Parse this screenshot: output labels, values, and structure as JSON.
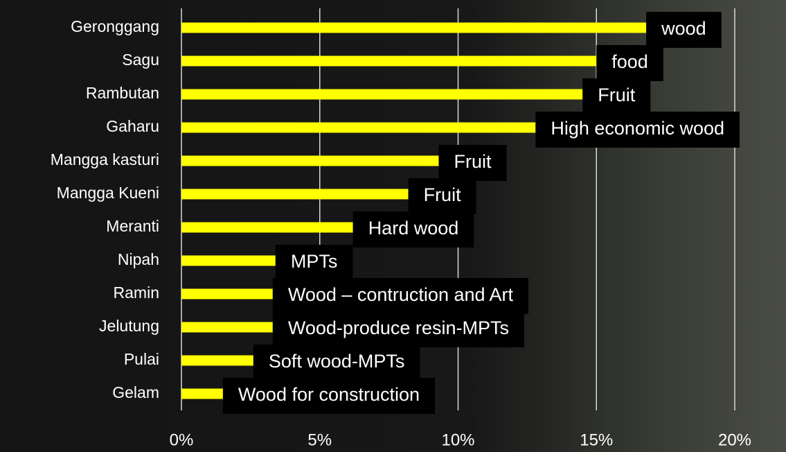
{
  "chart_data": {
    "type": "bar",
    "orientation": "horizontal",
    "categories": [
      "Geronggang",
      "Sagu",
      "Rambutan",
      "Gaharu",
      "Mangga kasturi",
      "Mangga Kueni",
      "Meranti",
      "Nipah",
      "Ramin",
      "Jelutung",
      "Pulai",
      "Gelam"
    ],
    "values": [
      16.8,
      15.0,
      14.5,
      12.8,
      9.3,
      8.2,
      6.2,
      3.4,
      3.3,
      3.3,
      2.6,
      1.5
    ],
    "annotations": [
      "wood",
      "food",
      "Fruit",
      "High economic wood",
      "Fruit",
      "Fruit",
      "Hard wood",
      "MPTs",
      "Wood – contruction and Art",
      "Wood-produce resin-MPTs",
      "Soft wood-MPTs",
      "Wood for construction"
    ],
    "color": "#ffff00",
    "xlim": [
      0,
      20
    ],
    "xticks": [
      {
        "value": 0,
        "label": "0%"
      },
      {
        "value": 5,
        "label": "5%"
      },
      {
        "value": 10,
        "label": "10%"
      },
      {
        "value": 15,
        "label": "15%"
      },
      {
        "value": 20,
        "label": "20%"
      }
    ],
    "grid": true
  }
}
